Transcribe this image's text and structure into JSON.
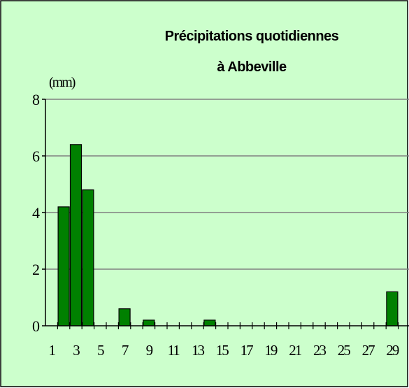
{
  "chart_data": {
    "type": "bar",
    "title": [
      "Précipitations quotidiennes",
      "à Abbeville"
    ],
    "ylabel": "(mm)",
    "categories": [
      1,
      null,
      3,
      null,
      5,
      null,
      7,
      null,
      9,
      null,
      11,
      null,
      13,
      null,
      15,
      null,
      17,
      null,
      19,
      null,
      21,
      null,
      23,
      null,
      25,
      null,
      27,
      null,
      29,
      null
    ],
    "values": [
      0,
      4.2,
      6.4,
      4.8,
      0,
      0,
      0.6,
      0,
      0.2,
      0,
      0,
      0,
      0,
      0.2,
      0,
      0,
      0,
      0,
      0,
      0,
      0,
      0,
      0,
      0,
      0,
      0,
      0,
      0,
      1.2,
      0
    ],
    "color": "#008000",
    "ylim": [
      0,
      8
    ],
    "yticks": [
      0,
      2,
      4,
      6,
      8
    ],
    "grid": true
  }
}
